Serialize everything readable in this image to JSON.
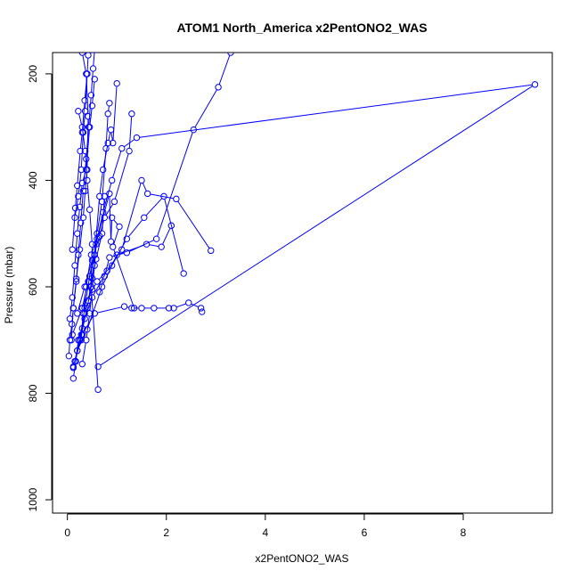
{
  "chart_data": {
    "type": "line",
    "title": "ATOM1 North_America x2PentONO2_WAS",
    "xlabel": "x2PentONO2_WAS",
    "ylabel": "Pressure (mbar)",
    "xlim": [
      -0.3,
      9.8
    ],
    "ylim": [
      1025,
      160
    ],
    "y_reversed": true,
    "x_ticks": [
      0,
      2,
      4,
      6,
      8
    ],
    "x_tick_labels": [
      "0",
      "2",
      "4",
      "6",
      "8"
    ],
    "y_ticks": [
      200,
      400,
      600,
      800,
      1000
    ],
    "y_tick_labels": [
      "200",
      "400",
      "600",
      "800",
      "1000"
    ],
    "color": "#0000ff",
    "grid": false,
    "legend": "none",
    "series": [
      {
        "points": [
          [
            0.03,
            730
          ],
          [
            0.05,
            700
          ],
          [
            0.09,
            670
          ],
          [
            0.12,
            640
          ],
          [
            0.18,
            590
          ],
          [
            0.22,
            540
          ],
          [
            0.27,
            480
          ],
          [
            0.32,
            420
          ],
          [
            0.38,
            360
          ],
          [
            0.43,
            300
          ],
          [
            0.48,
            240
          ],
          [
            0.52,
            190
          ],
          [
            0.55,
            155
          ]
        ]
      },
      {
        "points": [
          [
            0.12,
            750
          ],
          [
            0.25,
            700
          ],
          [
            0.35,
            640
          ],
          [
            0.45,
            580
          ],
          [
            0.58,
            520
          ],
          [
            0.72,
            460
          ],
          [
            0.9,
            400
          ],
          [
            1.1,
            340
          ],
          [
            1.4,
            320
          ],
          [
            9.45,
            220
          ],
          [
            0.62,
            750
          ]
        ]
      },
      {
        "points": [
          [
            0.15,
            740
          ],
          [
            0.3,
            690
          ],
          [
            0.55,
            650
          ],
          [
            1.15,
            637
          ],
          [
            1.3,
            640
          ],
          [
            1.5,
            640
          ],
          [
            1.75,
            640
          ],
          [
            2.05,
            640
          ],
          [
            2.15,
            640
          ],
          [
            2.45,
            630
          ],
          [
            2.7,
            640
          ],
          [
            2.72,
            647
          ]
        ]
      },
      {
        "points": [
          [
            0.2,
            720
          ],
          [
            0.4,
            680
          ],
          [
            0.7,
            600
          ],
          [
            1.0,
            540
          ],
          [
            1.2,
            536
          ],
          [
            1.8,
            510
          ],
          [
            2.55,
            305
          ],
          [
            3.05,
            225
          ],
          [
            3.3,
            160
          ]
        ]
      },
      {
        "points": [
          [
            0.25,
            700
          ],
          [
            0.35,
            660
          ],
          [
            0.5,
            620
          ],
          [
            0.8,
            570
          ],
          [
            1.1,
            530
          ],
          [
            1.5,
            400
          ],
          [
            1.62,
            425
          ],
          [
            2.2,
            435
          ],
          [
            2.9,
            532
          ]
        ]
      },
      {
        "points": [
          [
            0.1,
            690
          ],
          [
            0.3,
            640
          ],
          [
            0.6,
            590
          ],
          [
            0.9,
            560
          ],
          [
            1.2,
            510
          ],
          [
            1.55,
            470
          ],
          [
            1.95,
            430
          ],
          [
            2.35,
            575
          ]
        ]
      },
      {
        "points": [
          [
            0.2,
            650
          ],
          [
            0.35,
            600
          ],
          [
            0.5,
            550
          ],
          [
            0.65,
            505
          ],
          [
            0.75,
            470
          ],
          [
            0.95,
            440
          ],
          [
            1.25,
            345
          ],
          [
            1.3,
            275
          ]
        ]
      },
      {
        "points": [
          [
            0.3,
            640
          ],
          [
            0.42,
            590
          ],
          [
            0.55,
            540
          ],
          [
            0.65,
            430
          ],
          [
            0.72,
            380
          ],
          [
            0.82,
            330
          ],
          [
            0.88,
            305
          ],
          [
            0.92,
            330
          ],
          [
            1.0,
            218
          ]
        ]
      },
      {
        "points": [
          [
            0.05,
            660
          ],
          [
            0.1,
            620
          ],
          [
            0.15,
            560
          ],
          [
            0.2,
            500
          ],
          [
            0.25,
            450
          ],
          [
            0.3,
            405
          ],
          [
            0.38,
            380
          ],
          [
            0.45,
            300
          ],
          [
            0.5,
            260
          ],
          [
            0.55,
            210
          ]
        ]
      },
      {
        "points": [
          [
            0.3,
            745
          ],
          [
            0.38,
            700
          ],
          [
            0.45,
            650
          ],
          [
            0.5,
            605
          ],
          [
            0.55,
            560
          ],
          [
            0.6,
            500
          ],
          [
            0.7,
            440
          ],
          [
            0.78,
            340
          ],
          [
            0.82,
            275
          ],
          [
            0.85,
            255
          ]
        ]
      },
      {
        "points": [
          [
            0.08,
            700
          ],
          [
            0.12,
            640
          ],
          [
            0.18,
            585
          ],
          [
            0.25,
            530
          ],
          [
            0.32,
            470
          ],
          [
            0.36,
            420
          ],
          [
            0.4,
            380
          ],
          [
            0.42,
            280
          ],
          [
            0.38,
            200
          ],
          [
            0.3,
            160
          ]
        ]
      },
      {
        "points": [
          [
            0.28,
            700
          ],
          [
            0.32,
            650
          ],
          [
            0.38,
            600
          ],
          [
            0.48,
            540
          ],
          [
            0.6,
            510
          ],
          [
            0.85,
            425
          ],
          [
            0.88,
            515
          ],
          [
            0.9,
            470
          ],
          [
            1.05,
            487
          ],
          [
            0.92,
            525
          ],
          [
            1.35,
            640
          ]
        ]
      },
      {
        "points": [
          [
            0.65,
            610
          ],
          [
            0.75,
            580
          ],
          [
            0.85,
            545
          ],
          [
            1.6,
            520
          ],
          [
            1.9,
            525
          ],
          [
            2.1,
            485
          ]
        ]
      },
      {
        "points": [
          [
            0.22,
            270
          ],
          [
            0.3,
            300
          ],
          [
            0.36,
            345
          ],
          [
            0.4,
            400
          ],
          [
            0.45,
            455
          ],
          [
            0.5,
            520
          ],
          [
            0.48,
            600
          ],
          [
            0.62,
            793
          ]
        ]
      },
      {
        "points": [
          [
            0.15,
            470
          ],
          [
            0.22,
            430
          ],
          [
            0.28,
            380
          ],
          [
            0.32,
            310
          ],
          [
            0.36,
            270
          ],
          [
            0.4,
            200
          ],
          [
            0.42,
            165
          ]
        ]
      },
      {
        "points": [
          [
            0.1,
            530
          ],
          [
            0.16,
            452
          ],
          [
            0.2,
            410
          ],
          [
            0.26,
            345
          ],
          [
            0.3,
            310
          ],
          [
            0.35,
            250
          ],
          [
            0.4,
            200
          ]
        ]
      },
      {
        "points": [
          [
            0.12,
            772
          ],
          [
            0.2,
            720
          ],
          [
            0.28,
            690
          ],
          [
            0.4,
            640
          ],
          [
            0.58,
            548
          ],
          [
            0.7,
            500
          ],
          [
            0.75,
            430
          ]
        ]
      },
      {
        "points": [
          [
            0.12,
            752
          ],
          [
            0.17,
            740
          ],
          [
            0.22,
            700
          ],
          [
            0.3,
            678
          ],
          [
            0.35,
            650
          ],
          [
            0.42,
            626
          ],
          [
            0.5,
            584
          ],
          [
            0.55,
            540
          ]
        ]
      }
    ]
  }
}
